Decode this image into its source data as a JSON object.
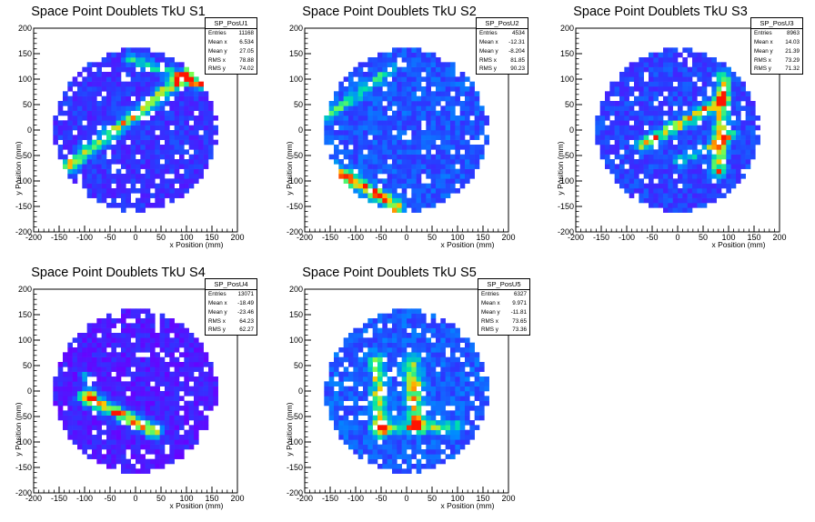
{
  "colors": {
    "background": "#ffffff",
    "low_density": "#6a00ff",
    "mid_density": "#0080ff",
    "high_density": "#00e0a0",
    "peak_density": "#ff2000"
  },
  "chart_data": [
    {
      "type": "heatmap",
      "title": "Space Point Doublets TkU S1",
      "stats": {
        "name": "SP_PosU1",
        "rows": [
          {
            "label": "Entries",
            "value": "11168"
          },
          {
            "label": "Mean x",
            "value": "6.534"
          },
          {
            "label": "Mean y",
            "value": "27.05"
          },
          {
            "label": "RMS x",
            "value": "78.88"
          },
          {
            "label": "RMS y",
            "value": "74.02"
          }
        ]
      },
      "xlabel": "x Position (mm)",
      "ylabel": "y Position (mm)",
      "xlim": [
        -200,
        200
      ],
      "ylim": [
        -200,
        200
      ],
      "xticks": [
        "-200",
        "-150",
        "-100",
        "-50",
        "0",
        "50",
        "100",
        "150",
        "200"
      ],
      "yticks": [
        "-200",
        "-150",
        "-100",
        "-50",
        "0",
        "50",
        "100",
        "150",
        "200"
      ],
      "detector_radius": 160,
      "base_density": 0.2,
      "tracks": [
        {
          "x1": -130,
          "y1": -70,
          "x2": 100,
          "y2": 110,
          "intensity": 0.6,
          "width": 9
        },
        {
          "x1": -10,
          "y1": 140,
          "x2": 130,
          "y2": 90,
          "intensity": 0.45,
          "width": 8
        },
        {
          "x1": 90,
          "y1": 100,
          "x2": 130,
          "y2": 90,
          "intensity": 0.4,
          "width": 6
        }
      ]
    },
    {
      "type": "heatmap",
      "title": "Space Point Doublets TkU S2",
      "stats": {
        "name": "SP_PosU2",
        "rows": [
          {
            "label": "Entries",
            "value": "4534"
          },
          {
            "label": "Mean x",
            "value": "-12.31"
          },
          {
            "label": "Mean y",
            "value": "-8.204"
          },
          {
            "label": "RMS x",
            "value": "81.85"
          },
          {
            "label": "RMS y",
            "value": "90.23"
          }
        ]
      },
      "xlabel": "x Position (mm)",
      "ylabel": "y Position (mm)",
      "xlim": [
        -200,
        200
      ],
      "ylim": [
        -200,
        200
      ],
      "xticks": [
        "-200",
        "-150",
        "-100",
        "-50",
        "0",
        "50",
        "100",
        "150",
        "200"
      ],
      "yticks": [
        "-200",
        "-150",
        "-100",
        "-50",
        "0",
        "50",
        "100",
        "150",
        "200"
      ],
      "detector_radius": 160,
      "base_density": 0.3,
      "tracks": [
        {
          "x1": -150,
          "y1": -70,
          "x2": -20,
          "y2": -150,
          "intensity": 0.65,
          "width": 9
        },
        {
          "x1": -150,
          "y1": 30,
          "x2": -30,
          "y2": 120,
          "intensity": 0.35,
          "width": 7
        }
      ]
    },
    {
      "type": "heatmap",
      "title": "Space Point Doublets TkU S3",
      "stats": {
        "name": "SP_PosU3",
        "rows": [
          {
            "label": "Entries",
            "value": "8963"
          },
          {
            "label": "Mean x",
            "value": "14.03"
          },
          {
            "label": "Mean y",
            "value": "21.39"
          },
          {
            "label": "RMS x",
            "value": "73.29"
          },
          {
            "label": "RMS y",
            "value": "71.32"
          }
        ]
      },
      "xlabel": "x Position (mm)",
      "ylabel": "y Position (mm)",
      "xlim": [
        -200,
        200
      ],
      "ylim": [
        -200,
        200
      ],
      "xticks": [
        "-200",
        "-150",
        "-100",
        "-50",
        "0",
        "50",
        "100",
        "150",
        "200"
      ],
      "yticks": [
        "-200",
        "-150",
        "-100",
        "-50",
        "0",
        "50",
        "100",
        "150",
        "200"
      ],
      "detector_radius": 160,
      "base_density": 0.25,
      "tracks": [
        {
          "x1": -70,
          "y1": -30,
          "x2": 90,
          "y2": 60,
          "intensity": 0.6,
          "width": 8
        },
        {
          "x1": 80,
          "y1": -80,
          "x2": 90,
          "y2": 100,
          "intensity": 0.55,
          "width": 10
        },
        {
          "x1": 0,
          "y1": -60,
          "x2": 110,
          "y2": -10,
          "intensity": 0.4,
          "width": 7
        }
      ]
    },
    {
      "type": "heatmap",
      "title": "Space Point Doublets TkU S4",
      "stats": {
        "name": "SP_PosU4",
        "rows": [
          {
            "label": "Entries",
            "value": "13071"
          },
          {
            "label": "Mean x",
            "value": "-18.49"
          },
          {
            "label": "Mean y",
            "value": "-23.46"
          },
          {
            "label": "RMS x",
            "value": "64.23"
          },
          {
            "label": "RMS y",
            "value": "62.27"
          }
        ]
      },
      "xlabel": "x Position (mm)",
      "ylabel": "y Position (mm)",
      "xlim": [
        -200,
        200
      ],
      "ylim": [
        -200,
        200
      ],
      "xticks": [
        "-200",
        "-150",
        "-100",
        "-50",
        "0",
        "50",
        "100",
        "150",
        "200"
      ],
      "yticks": [
        "-200",
        "-150",
        "-100",
        "-50",
        "0",
        "50",
        "100",
        "150",
        "200"
      ],
      "detector_radius": 160,
      "base_density": 0.12,
      "tracks": [
        {
          "x1": -100,
          "y1": -10,
          "x2": 40,
          "y2": -80,
          "intensity": 0.75,
          "width": 10
        },
        {
          "x1": -100,
          "y1": 30,
          "x2": -80,
          "y2": -20,
          "intensity": 0.3,
          "width": 6
        }
      ]
    },
    {
      "type": "heatmap",
      "title": "Space Point Doublets TkU S5",
      "stats": {
        "name": "SP_PosU5",
        "rows": [
          {
            "label": "Entries",
            "value": "6327"
          },
          {
            "label": "Mean x",
            "value": "9.971"
          },
          {
            "label": "Mean y",
            "value": "-11.81"
          },
          {
            "label": "RMS x",
            "value": "73.65"
          },
          {
            "label": "RMS y",
            "value": "73.36"
          }
        ]
      },
      "xlabel": "x Position (mm)",
      "ylabel": "y Position (mm)",
      "xlim": [
        -200,
        200
      ],
      "ylim": [
        -200,
        200
      ],
      "xticks": [
        "-200",
        "-150",
        "-100",
        "-50",
        "0",
        "50",
        "100",
        "150",
        "200"
      ],
      "yticks": [
        "-200",
        "-150",
        "-100",
        "-50",
        "0",
        "50",
        "100",
        "150",
        "200"
      ],
      "detector_radius": 160,
      "base_density": 0.32,
      "tracks": [
        {
          "x1": -60,
          "y1": 60,
          "x2": -50,
          "y2": -80,
          "intensity": 0.45,
          "width": 10
        },
        {
          "x1": 10,
          "y1": 50,
          "x2": 20,
          "y2": -60,
          "intensity": 0.5,
          "width": 12
        },
        {
          "x1": -60,
          "y1": -70,
          "x2": 100,
          "y2": -70,
          "intensity": 0.35,
          "width": 8
        }
      ]
    }
  ]
}
